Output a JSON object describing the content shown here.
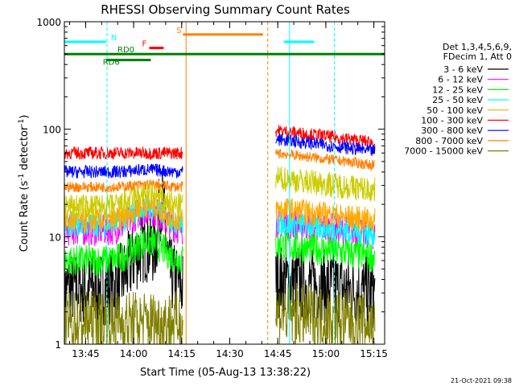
{
  "chart_data": {
    "type": "line",
    "title": "RHESSI Observing Summary Count Rates",
    "xlabel": "Start Time (05-Aug-13 13:38:22)",
    "ylabel_main": "Count Rate (s",
    "ylabel_sup1": "-1",
    "ylabel_mid": " detector",
    "ylabel_sup2": "-1",
    "ylabel_end": ")",
    "yscale": "log",
    "ylim": [
      1,
      1000
    ],
    "xlim_minutes": [
      0,
      100
    ],
    "x_ticks": [
      {
        "t": 6.63,
        "label": "13:45"
      },
      {
        "t": 21.63,
        "label": "14:00"
      },
      {
        "t": 36.63,
        "label": "14:15"
      },
      {
        "t": 51.63,
        "label": "14:30"
      },
      {
        "t": 66.63,
        "label": "14:45"
      },
      {
        "t": 81.63,
        "label": "15:00"
      },
      {
        "t": 96.63,
        "label": "15:15"
      }
    ],
    "y_ticks": [
      {
        "v": 1,
        "label": "1"
      },
      {
        "v": 10,
        "label": "10"
      },
      {
        "v": 100,
        "label": "100"
      },
      {
        "v": 1000,
        "label": "1000"
      }
    ],
    "legend_header": [
      "Det 1,3,4,5,6,9,",
      "FDecim 1, Att 0"
    ],
    "series": [
      {
        "name": "3 - 6 keV",
        "color": "#000000",
        "pre": 3.3,
        "post": 3.0,
        "noise": 0.35,
        "peak": 1.5
      },
      {
        "name": "6 - 12 keV",
        "color": "#ff00ff",
        "pre": 11.5,
        "post": 10.5,
        "noise": 0.15,
        "peak": 0.55
      },
      {
        "name": "12 - 25 keV",
        "color": "#00ff00",
        "pre": 6.0,
        "post": 6.5,
        "noise": 0.15,
        "peak": 0.5
      },
      {
        "name": "25 - 50 keV",
        "color": "#00ffff",
        "pre": 13.0,
        "post": 10.5,
        "noise": 0.12,
        "peak": 0.45
      },
      {
        "name": "50 - 100 keV",
        "color": "#ffaa00",
        "pre": 14.0,
        "post": 14.0,
        "noise": 0.12,
        "peak": 0.4
      },
      {
        "name": "100 - 300 keV",
        "color": "#ff0000",
        "pre": 60.0,
        "post": 75.0,
        "noise": 0.06,
        "peak": 0.0
      },
      {
        "name": "300 - 800 keV",
        "color": "#0000ff",
        "pre": 40.0,
        "post": 62.0,
        "noise": 0.06,
        "peak": 0.05
      },
      {
        "name": "800 - 7000 keV",
        "color": "#ff8000",
        "pre": 29.0,
        "post": 46.0,
        "noise": 0.05,
        "peak": 0.05
      },
      {
        "name": "7000 - 15000 keV",
        "color": "#808000",
        "pre": 1.6,
        "post": 1.5,
        "noise": 0.3,
        "peak": 0.0
      }
    ],
    "extra_series": {
      "yellow": {
        "color": "#cccc00",
        "pre": 19.0,
        "post": 27.0
      }
    },
    "flags": [
      {
        "label": "N",
        "color": "#00ffff",
        "value": 650,
        "segments": [
          [
            0,
            13
          ],
          [
            68.5,
            78
          ]
        ]
      },
      {
        "label": "F",
        "color": "#ff0000",
        "value": 570,
        "segments": [
          [
            26.5,
            31
          ]
        ]
      },
      {
        "label": "S",
        "color": "#ff8000",
        "value": 760,
        "segments": [
          [
            37,
            62
          ]
        ]
      },
      {
        "label": "RD0",
        "color": "#008000",
        "value": 500,
        "segments": [
          [
            0,
            100
          ]
        ]
      },
      {
        "label": "RD6",
        "color": "#008000",
        "value": 440,
        "segments": [
          [
            13,
            27
          ]
        ]
      }
    ],
    "vertical_lines": [
      {
        "t": 0.0,
        "color": "#00ffff",
        "dashed": false
      },
      {
        "t": 13.3,
        "color": "#00ffff",
        "dashed": true
      },
      {
        "t": 38.0,
        "color": "#ff8000",
        "dashed": false
      },
      {
        "t": 63.5,
        "color": "#ff8000",
        "dashed": true
      },
      {
        "t": 70.3,
        "color": "#00ffff",
        "dashed": false
      },
      {
        "t": 84.3,
        "color": "#00ffff",
        "dashed": true
      }
    ],
    "data_gaps": [
      [
        37,
        66
      ]
    ]
  },
  "footer_date": "21-Oct-2021 09:38"
}
